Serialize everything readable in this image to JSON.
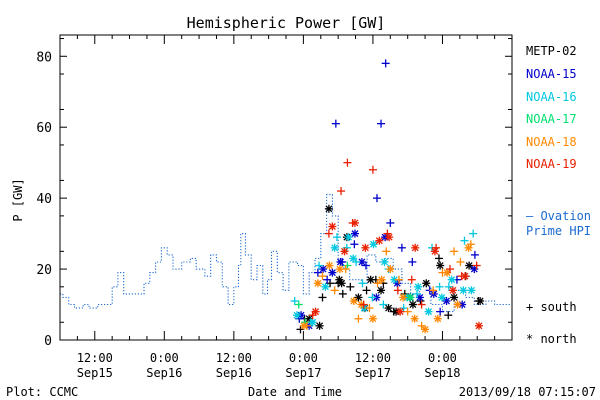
{
  "chart_data": {
    "type": "scatter",
    "title": "Hemispheric Power [GW]",
    "xlabel": "Date and Time",
    "ylabel": "P [GW]",
    "x_unit": "hours since 2013-09-15 00:00 UT",
    "xlim": [
      6.0,
      84.0
    ],
    "ylim": [
      0,
      86
    ],
    "yticks": [
      0,
      20,
      40,
      60,
      80
    ],
    "xticks": [
      {
        "x": 12,
        "time": "12:00",
        "day": "Sep15"
      },
      {
        "x": 24,
        "time": "0:00",
        "day": "Sep16"
      },
      {
        "x": 36,
        "time": "12:00",
        "day": "Sep16"
      },
      {
        "x": 48,
        "time": "0:00",
        "day": "Sep17"
      },
      {
        "x": 60,
        "time": "12:00",
        "day": "Sep17"
      },
      {
        "x": 72,
        "time": "0:00",
        "day": "Sep18"
      }
    ],
    "xminor": [
      9,
      15,
      18,
      21,
      27,
      30,
      33,
      39,
      42,
      45,
      51,
      54,
      57,
      63,
      66,
      69,
      75,
      78,
      81
    ],
    "legend_position": "right",
    "series": [
      {
        "name": "METP-02",
        "color": "#000000",
        "hemisphere": "south",
        "points": [
          [
            47.5,
            3
          ],
          [
            48.2,
            6
          ],
          [
            51.3,
            12
          ],
          [
            52.6,
            16
          ],
          [
            54.0,
            16
          ],
          [
            54.8,
            13
          ],
          [
            56.1,
            15
          ],
          [
            58.9,
            14
          ],
          [
            60.5,
            17
          ],
          [
            61.8,
            16
          ],
          [
            63.6,
            8
          ],
          [
            65.5,
            13
          ],
          [
            68.2,
            11
          ],
          [
            71.4,
            23
          ],
          [
            73.0,
            7
          ],
          [
            76.0,
            18
          ],
          [
            78.2,
            11
          ]
        ]
      },
      {
        "name": "METP-02",
        "color": "#000000",
        "hemisphere": "north",
        "points": [
          [
            49.0,
            6
          ],
          [
            52.4,
            37
          ],
          [
            54.2,
            17
          ],
          [
            54.6,
            16
          ],
          [
            55.5,
            29
          ],
          [
            57.5,
            12
          ],
          [
            58.6,
            9
          ],
          [
            59.6,
            17
          ],
          [
            61.4,
            14
          ],
          [
            62.7,
            9
          ],
          [
            64.0,
            8
          ],
          [
            66.9,
            10
          ],
          [
            69.2,
            16
          ],
          [
            71.6,
            21
          ],
          [
            74.0,
            12
          ],
          [
            76.6,
            21
          ],
          [
            78.5,
            11
          ],
          [
            50.8,
            4
          ]
        ]
      },
      {
        "name": "NOAA-15",
        "color": "#0000cc",
        "hemisphere": "south",
        "points": [
          [
            47.3,
            6
          ],
          [
            50.5,
            19
          ],
          [
            52.1,
            17
          ],
          [
            53.6,
            61
          ],
          [
            54.7,
            22
          ],
          [
            56.8,
            27
          ],
          [
            58.8,
            21
          ],
          [
            60.7,
            40
          ],
          [
            61.4,
            61
          ],
          [
            62.2,
            78
          ],
          [
            63.0,
            33
          ],
          [
            65.0,
            26
          ],
          [
            66.8,
            22
          ],
          [
            69.8,
            14
          ],
          [
            71.6,
            8
          ],
          [
            74.5,
            17
          ],
          [
            77.6,
            24
          ]
        ]
      },
      {
        "name": "NOAA-15",
        "color": "#0000cc",
        "hemisphere": "north",
        "points": [
          [
            47.6,
            7
          ],
          [
            49.0,
            4
          ],
          [
            51.4,
            20
          ],
          [
            53.0,
            19
          ],
          [
            54.4,
            22
          ],
          [
            56.9,
            30
          ],
          [
            58.1,
            22
          ],
          [
            60.6,
            12
          ],
          [
            62.1,
            29
          ],
          [
            64.2,
            16
          ],
          [
            66.4,
            12
          ],
          [
            68.1,
            12
          ],
          [
            70.5,
            13
          ],
          [
            72.7,
            11
          ],
          [
            75.4,
            10
          ],
          [
            77.5,
            20
          ]
        ]
      },
      {
        "name": "NOAA-16",
        "color": "#00c8e0",
        "hemisphere": "south",
        "points": [
          [
            46.5,
            11
          ],
          [
            49.3,
            5
          ],
          [
            50.7,
            21
          ],
          [
            53.8,
            29
          ],
          [
            55.5,
            26
          ],
          [
            57.1,
            22
          ],
          [
            58.2,
            16
          ],
          [
            59.9,
            12
          ],
          [
            61.8,
            10
          ],
          [
            62.7,
            20
          ],
          [
            65.3,
            9
          ],
          [
            67.6,
            13
          ],
          [
            70.2,
            26
          ],
          [
            71.5,
            15
          ],
          [
            73.1,
            15
          ],
          [
            75.8,
            28
          ],
          [
            77.3,
            30
          ]
        ]
      },
      {
        "name": "NOAA-16",
        "color": "#00c8e0",
        "hemisphere": "north",
        "points": [
          [
            46.9,
            7
          ],
          [
            49.6,
            5
          ],
          [
            51.8,
            15
          ],
          [
            53.4,
            26
          ],
          [
            55.8,
            29
          ],
          [
            56.6,
            23
          ],
          [
            58.5,
            9
          ],
          [
            60.1,
            27
          ],
          [
            62.0,
            22
          ],
          [
            63.7,
            17
          ],
          [
            65.9,
            12
          ],
          [
            67.8,
            15
          ],
          [
            69.6,
            8
          ],
          [
            71.9,
            12
          ],
          [
            73.6,
            17
          ],
          [
            75.6,
            14
          ],
          [
            77.0,
            14
          ]
        ]
      },
      {
        "name": "NOAA-17",
        "color": "#00e070",
        "hemisphere": "south",
        "points": [
          [
            47.2,
            10
          ],
          [
            48.3,
            5
          ],
          [
            55.6,
            21
          ]
        ]
      },
      {
        "name": "NOAA-17",
        "color": "#00e070",
        "hemisphere": "north",
        "points": [
          [
            66.5,
            12
          ]
        ]
      },
      {
        "name": "NOAA-18",
        "color": "#ff8800",
        "hemisphere": "south",
        "points": [
          [
            48.6,
            4
          ],
          [
            51.3,
            18
          ],
          [
            53.4,
            14
          ],
          [
            55.3,
            20
          ],
          [
            57.5,
            6
          ],
          [
            59.4,
            9
          ],
          [
            60.8,
            16
          ],
          [
            62.3,
            25
          ],
          [
            64.5,
            17
          ],
          [
            66.0,
            8
          ],
          [
            68.4,
            4
          ],
          [
            70.4,
            14
          ],
          [
            72.0,
            19
          ],
          [
            74.0,
            25
          ],
          [
            75.1,
            22
          ],
          [
            76.9,
            27
          ]
        ]
      },
      {
        "name": "NOAA-18",
        "color": "#ff8800",
        "hemisphere": "north",
        "points": [
          [
            48.1,
            4
          ],
          [
            50.5,
            16
          ],
          [
            52.5,
            21
          ],
          [
            54.3,
            20
          ],
          [
            56.7,
            11
          ],
          [
            58.0,
            10
          ],
          [
            60.0,
            6
          ],
          [
            61.5,
            17
          ],
          [
            63.0,
            20
          ],
          [
            65.2,
            12
          ],
          [
            67.2,
            6
          ],
          [
            69.0,
            3
          ],
          [
            71.2,
            6
          ],
          [
            72.8,
            19
          ],
          [
            74.6,
            10
          ],
          [
            76.5,
            26
          ]
        ]
      },
      {
        "name": "NOAA-19",
        "color": "#e82000",
        "hemisphere": "south",
        "points": [
          [
            49.6,
            7
          ],
          [
            52.4,
            30
          ],
          [
            54.5,
            42
          ],
          [
            55.6,
            50
          ],
          [
            56.5,
            33
          ],
          [
            58.4,
            10
          ],
          [
            60.0,
            48
          ],
          [
            62.5,
            30
          ],
          [
            64.3,
            14
          ],
          [
            66.7,
            17
          ],
          [
            68.4,
            10
          ],
          [
            70.9,
            26
          ],
          [
            73.3,
            20
          ],
          [
            75.3,
            18
          ],
          [
            77.9,
            21
          ]
        ]
      },
      {
        "name": "NOAA-19",
        "color": "#e82000",
        "hemisphere": "north",
        "points": [
          [
            50.1,
            8
          ],
          [
            53.0,
            32
          ],
          [
            55.1,
            25
          ],
          [
            56.9,
            33
          ],
          [
            58.7,
            26
          ],
          [
            61.1,
            28
          ],
          [
            62.8,
            29
          ],
          [
            64.7,
            8
          ],
          [
            67.3,
            26
          ],
          [
            70.7,
            25
          ],
          [
            73.8,
            14
          ],
          [
            75.9,
            18
          ],
          [
            78.3,
            4
          ]
        ]
      }
    ],
    "ovation_prime_hpi": {
      "name": "— Ovation Prime HPI",
      "color": "#1a6ad0",
      "style": "dotted-step",
      "steps": [
        [
          6.0,
          13
        ],
        [
          6.5,
          12
        ],
        [
          7.5,
          10
        ],
        [
          8.5,
          9
        ],
        [
          10.0,
          10
        ],
        [
          11.0,
          9
        ],
        [
          12.5,
          10
        ],
        [
          14.0,
          10
        ],
        [
          15.0,
          15
        ],
        [
          16.0,
          19
        ],
        [
          17.0,
          13
        ],
        [
          19.0,
          13
        ],
        [
          20.5,
          16
        ],
        [
          21.5,
          19
        ],
        [
          22.5,
          22
        ],
        [
          23.5,
          26
        ],
        [
          24.5,
          24
        ],
        [
          25.5,
          20
        ],
        [
          27.0,
          22
        ],
        [
          28.5,
          23
        ],
        [
          29.5,
          20
        ],
        [
          31.0,
          18
        ],
        [
          32.0,
          24
        ],
        [
          33.0,
          22
        ],
        [
          34.0,
          15
        ],
        [
          35.0,
          10
        ],
        [
          36.0,
          15
        ],
        [
          36.8,
          21
        ],
        [
          37.2,
          30
        ],
        [
          38.0,
          24
        ],
        [
          39.0,
          17
        ],
        [
          40.0,
          21
        ],
        [
          41.0,
          13
        ],
        [
          41.8,
          17
        ],
        [
          42.5,
          25
        ],
        [
          43.5,
          19
        ],
        [
          44.5,
          14
        ],
        [
          45.5,
          22
        ],
        [
          47.0,
          21
        ],
        [
          48.0,
          13
        ],
        [
          49.0,
          19
        ],
        [
          50.0,
          23
        ],
        [
          51.0,
          30
        ],
        [
          52.0,
          41
        ],
        [
          53.0,
          35
        ],
        [
          54.0,
          21
        ],
        [
          55.0,
          20
        ],
        [
          56.0,
          17
        ],
        [
          58.0,
          16
        ],
        [
          59.0,
          24
        ],
        [
          60.5,
          22
        ],
        [
          62.0,
          23
        ],
        [
          63.5,
          20
        ],
        [
          65.0,
          16
        ],
        [
          66.5,
          13
        ],
        [
          68.0,
          15
        ],
        [
          70.0,
          10
        ],
        [
          72.0,
          8
        ],
        [
          74.0,
          14
        ],
        [
          76.0,
          12
        ],
        [
          77.5,
          10
        ],
        [
          79.5,
          11
        ],
        [
          81.0,
          10
        ],
        [
          84.0,
          10
        ]
      ]
    },
    "legend_names": [
      "METP-02",
      "NOAA-15",
      "NOAA-16",
      "NOAA-17",
      "NOAA-18",
      "NOAA-19"
    ],
    "hpi_label_line1": "— Ovation",
    "hpi_label_line2": "Prime HPI",
    "symbol_legend": {
      "south": "+ south",
      "north": "* north"
    }
  },
  "footer": {
    "left": "Plot: CCMC",
    "center": "Date and Time",
    "right": "2013/09/18 07:15:07"
  }
}
